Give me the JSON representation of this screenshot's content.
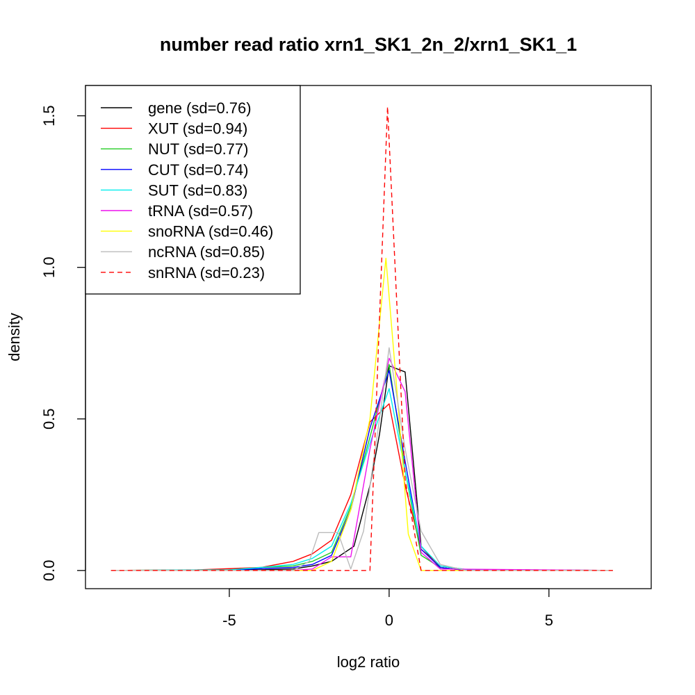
{
  "chart_data": {
    "type": "line",
    "title": "number read ratio xrn1_SK1_2n_2/xrn1_SK1_1",
    "xlabel": "log2 ratio",
    "ylabel": "density",
    "xlim": [
      -9.5,
      8.2
    ],
    "ylim": [
      -0.06,
      1.6
    ],
    "x_ticks": [
      -5,
      0,
      5
    ],
    "x_tick_labels": [
      "-5",
      "0",
      "5"
    ],
    "y_ticks": [
      0.0,
      0.5,
      1.0,
      1.5
    ],
    "y_tick_labels": [
      "0.0",
      "0.5",
      "1.0",
      "1.5"
    ],
    "grid": false,
    "legend_position": "top-left",
    "series": [
      {
        "name": "gene (sd=0.76)",
        "color": "#000000",
        "dash": false,
        "x": [
          -8.7,
          -6,
          -4,
          -3,
          -2.4,
          -1.8,
          -1.1,
          -0.6,
          -0.3,
          0,
          0.5,
          1.0,
          1.6,
          2.4,
          7.0
        ],
        "y": [
          0,
          0,
          0.002,
          0.005,
          0.015,
          0.03,
          0.08,
          0.28,
          0.45,
          0.675,
          0.655,
          0.08,
          0.01,
          0,
          0
        ]
      },
      {
        "name": "XUT (sd=0.94)",
        "color": "#ff0000",
        "dash": false,
        "x": [
          -8.7,
          -6,
          -4,
          -3,
          -2.4,
          -1.8,
          -1.2,
          -0.6,
          0,
          0.5,
          1.0,
          1.6,
          2.4,
          7.0
        ],
        "y": [
          0,
          0.002,
          0.01,
          0.03,
          0.055,
          0.1,
          0.25,
          0.49,
          0.55,
          0.28,
          0.07,
          0.015,
          0.003,
          0
        ]
      },
      {
        "name": "NUT (sd=0.77)",
        "color": "#22cc22",
        "dash": false,
        "x": [
          -8.7,
          -5,
          -4,
          -3,
          -2.4,
          -1.8,
          -1.2,
          -0.6,
          0,
          0.5,
          1.0,
          1.6,
          2.4,
          7.0
        ],
        "y": [
          0,
          0.002,
          0.01,
          0.015,
          0.03,
          0.06,
          0.21,
          0.44,
          0.68,
          0.33,
          0.05,
          0.01,
          0,
          0
        ]
      },
      {
        "name": "CUT (sd=0.74)",
        "color": "#0000ff",
        "dash": false,
        "x": [
          -8.7,
          -5,
          -4,
          -3,
          -2.4,
          -1.8,
          -1.2,
          -0.6,
          0,
          0.5,
          1.0,
          1.6,
          2.4,
          7.0
        ],
        "y": [
          0,
          0.001,
          0.006,
          0.01,
          0.02,
          0.05,
          0.2,
          0.47,
          0.66,
          0.36,
          0.07,
          0.01,
          0,
          0
        ]
      },
      {
        "name": "SUT (sd=0.83)",
        "color": "#00eeee",
        "dash": false,
        "x": [
          -8.7,
          -5,
          -4,
          -3,
          -2.4,
          -1.8,
          -1.2,
          -0.6,
          0,
          0.5,
          1.0,
          1.6,
          2.4,
          7.0
        ],
        "y": [
          0,
          0.002,
          0.01,
          0.02,
          0.04,
          0.08,
          0.22,
          0.42,
          0.6,
          0.33,
          0.08,
          0.015,
          0.003,
          0
        ]
      },
      {
        "name": "tRNA (sd=0.57)",
        "color": "#ee11ee",
        "dash": false,
        "x": [
          -8.7,
          -3,
          -2.4,
          -1.8,
          -1.2,
          -0.6,
          0,
          0.5,
          1.0,
          1.6,
          7.0
        ],
        "y": [
          0,
          0,
          0.005,
          0.045,
          0.045,
          0.4,
          0.7,
          0.59,
          0.06,
          0.005,
          0
        ]
      },
      {
        "name": "snoRNA (sd=0.46)",
        "color": "#ffff00",
        "dash": false,
        "x": [
          -8.7,
          -2.4,
          -1.8,
          -1.2,
          -0.6,
          -0.1,
          0.2,
          0.6,
          1.0,
          7.0
        ],
        "y": [
          0,
          0,
          0.03,
          0.2,
          0.5,
          1.03,
          0.65,
          0.12,
          0,
          0
        ]
      },
      {
        "name": "ncRNA (sd=0.85)",
        "color": "#bbbbbb",
        "dash": false,
        "x": [
          -8.7,
          -3,
          -2.5,
          -2.2,
          -1.6,
          -1.2,
          -0.8,
          -0.3,
          0,
          0.5,
          1.0,
          1.6,
          2.4,
          7.0
        ],
        "y": [
          0,
          0,
          0.03,
          0.125,
          0.125,
          0.005,
          0.13,
          0.5,
          0.735,
          0.4,
          0.13,
          0.02,
          0,
          0
        ]
      },
      {
        "name": "snRNA (sd=0.23)",
        "color": "#ff0000",
        "dash": true,
        "x": [
          -8.7,
          -0.6,
          -0.05,
          0.5,
          1.0,
          7.0
        ],
        "y": [
          0,
          0,
          1.53,
          0.3,
          0,
          0
        ]
      }
    ]
  }
}
